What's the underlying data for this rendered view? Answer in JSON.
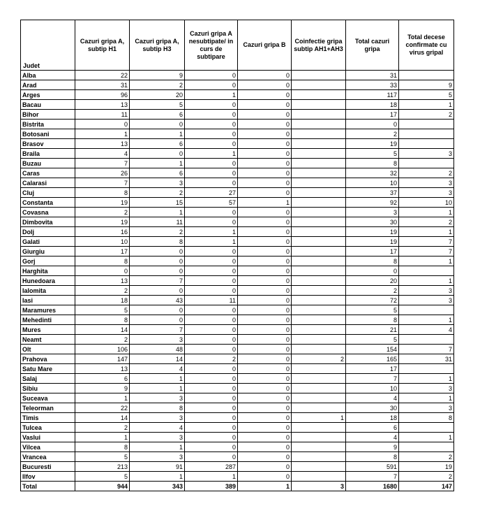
{
  "table": {
    "header": [
      "Judet",
      "Cazuri gripa A, subtip H1",
      "Cazuri gripa A, subtip H3",
      "Cazuri gripa A nesubtipate/ in curs de subtipare",
      "Cazuri gripa B",
      "Coinfectie gripa subtip AH1+AH3",
      "Total cazuri gripa",
      "Total decese confirmate cu virus gripal"
    ],
    "rows": [
      [
        "Alba",
        22,
        9,
        0,
        0,
        null,
        31,
        null
      ],
      [
        "Arad",
        31,
        2,
        0,
        0,
        null,
        33,
        9
      ],
      [
        "Arges",
        96,
        20,
        1,
        0,
        null,
        117,
        5
      ],
      [
        "Bacau",
        13,
        5,
        0,
        0,
        null,
        18,
        1
      ],
      [
        "Bihor",
        11,
        6,
        0,
        0,
        null,
        17,
        2
      ],
      [
        "Bistrita",
        0,
        0,
        0,
        0,
        null,
        0,
        null
      ],
      [
        "Botosani",
        1,
        1,
        0,
        0,
        null,
        2,
        null
      ],
      [
        "Brasov",
        13,
        6,
        0,
        0,
        null,
        19,
        null
      ],
      [
        "Braila",
        4,
        0,
        1,
        0,
        null,
        5,
        3
      ],
      [
        "Buzau",
        7,
        1,
        0,
        0,
        null,
        8,
        null
      ],
      [
        "Caras",
        26,
        6,
        0,
        0,
        null,
        32,
        2
      ],
      [
        "Calarasi",
        7,
        3,
        0,
        0,
        null,
        10,
        3
      ],
      [
        "Cluj",
        8,
        2,
        27,
        0,
        null,
        37,
        3
      ],
      [
        "Constanta",
        19,
        15,
        57,
        1,
        null,
        92,
        10
      ],
      [
        "Covasna",
        2,
        1,
        0,
        0,
        null,
        3,
        1
      ],
      [
        "Dimbovita",
        19,
        11,
        0,
        0,
        null,
        30,
        2
      ],
      [
        "Dolj",
        16,
        2,
        1,
        0,
        null,
        19,
        1
      ],
      [
        "Galati",
        10,
        8,
        1,
        0,
        null,
        19,
        7
      ],
      [
        "Giurgiu",
        17,
        0,
        0,
        0,
        null,
        17,
        7
      ],
      [
        "Gorj",
        8,
        0,
        0,
        0,
        null,
        8,
        1
      ],
      [
        "Harghita",
        0,
        0,
        0,
        0,
        null,
        0,
        null
      ],
      [
        "Hunedoara",
        13,
        7,
        0,
        0,
        null,
        20,
        1
      ],
      [
        "Ialomita",
        2,
        0,
        0,
        0,
        null,
        2,
        3
      ],
      [
        "Iasi",
        18,
        43,
        11,
        0,
        null,
        72,
        3
      ],
      [
        "Maramures",
        5,
        0,
        0,
        0,
        null,
        5,
        null
      ],
      [
        "Mehedinti",
        8,
        0,
        0,
        0,
        null,
        8,
        1
      ],
      [
        "Mures",
        14,
        7,
        0,
        0,
        null,
        21,
        4
      ],
      [
        "Neamt",
        2,
        3,
        0,
        0,
        null,
        5,
        null
      ],
      [
        "Olt",
        106,
        48,
        0,
        0,
        null,
        154,
        7
      ],
      [
        "Prahova",
        147,
        14,
        2,
        0,
        2,
        165,
        31
      ],
      [
        "Satu Mare",
        13,
        4,
        0,
        0,
        null,
        17,
        null
      ],
      [
        "Salaj",
        6,
        1,
        0,
        0,
        null,
        7,
        1
      ],
      [
        "Sibiu",
        9,
        1,
        0,
        0,
        null,
        10,
        3
      ],
      [
        "Suceava",
        1,
        3,
        0,
        0,
        null,
        4,
        1
      ],
      [
        "Teleorman",
        22,
        8,
        0,
        0,
        null,
        30,
        3
      ],
      [
        "Timis",
        14,
        3,
        0,
        0,
        1,
        18,
        8
      ],
      [
        "Tulcea",
        2,
        4,
        0,
        0,
        null,
        6,
        null
      ],
      [
        "Vaslui",
        1,
        3,
        0,
        0,
        null,
        4,
        1
      ],
      [
        "Vilcea",
        8,
        1,
        0,
        0,
        null,
        9,
        null
      ],
      [
        "Vrancea",
        5,
        3,
        0,
        0,
        null,
        8,
        2
      ],
      [
        "Bucuresti",
        213,
        91,
        287,
        0,
        null,
        591,
        19
      ],
      [
        "Ilfov",
        5,
        1,
        1,
        0,
        null,
        7,
        2
      ],
      [
        "Total",
        944,
        343,
        389,
        1,
        3,
        1680,
        147
      ]
    ]
  }
}
